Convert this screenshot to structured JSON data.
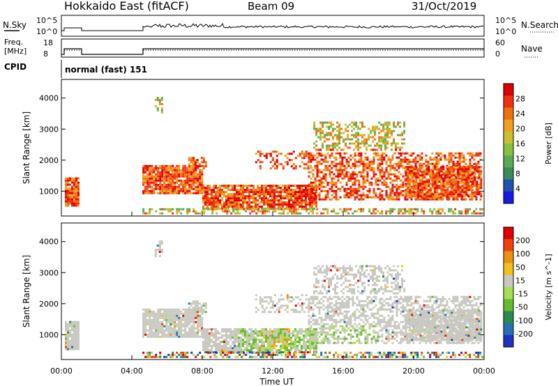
{
  "header": {
    "radar": "Hokkaido East (fitACF)",
    "beam": "Beam 09",
    "date": "31/Oct/2019"
  },
  "panels": {
    "nsky": {
      "label": "N.Sky",
      "ticks": [
        "10^5",
        "10^0"
      ],
      "right_label": "N.Search",
      "right_ticks": [
        "10^5",
        "10^0"
      ]
    },
    "freq": {
      "label_line1": "Freq.",
      "label_line2": "[MHz]",
      "ticks": [
        "18",
        "8"
      ],
      "right_label": "Nave",
      "right_ticks": [
        "60",
        "0"
      ]
    },
    "cpid": {
      "label": "CPID",
      "text": "normal (fast) 151"
    }
  },
  "chart_data": [
    {
      "type": "heatmap",
      "name": "power",
      "ylabel": "Slant Range [km]",
      "xlabel": "",
      "x_ticks": [
        "00:00",
        "04:00",
        "08:00",
        "12:00",
        "16:00",
        "20:00",
        "00:00"
      ],
      "y_ticks": [
        1000,
        2000,
        3000,
        4000
      ],
      "ylim": [
        200,
        4600
      ],
      "xlim_hours": [
        0,
        24
      ],
      "colorbar": {
        "label": "Power [dB]",
        "ticks": [
          "4",
          "8",
          "12",
          "16",
          "20",
          "24",
          "28"
        ],
        "colors": [
          "#1a1ae6",
          "#2050b0",
          "#3a8a5a",
          "#5aaa55",
          "#88c040",
          "#c8c030",
          "#f0a020",
          "#f07010",
          "#f03010",
          "#e00000"
        ]
      },
      "data_gaps_hours": [
        [
          1.0,
          4.6
        ]
      ]
    },
    {
      "type": "heatmap",
      "name": "velocity",
      "ylabel": "Slant Range [km]",
      "xlabel": "Time UT",
      "x_ticks": [
        "00:00",
        "04:00",
        "08:00",
        "12:00",
        "16:00",
        "20:00",
        "00:00"
      ],
      "y_ticks": [
        1000,
        2000,
        3000,
        4000
      ],
      "ylim": [
        200,
        4600
      ],
      "xlim_hours": [
        0,
        24
      ],
      "colorbar": {
        "label": "Velocity [m s^-1]",
        "ticks": [
          "200",
          "100",
          "50",
          "15",
          "-15",
          "-50",
          "-100",
          "-200"
        ],
        "colors": [
          "#2030c0",
          "#2870b0",
          "#2a8a50",
          "#66bb33",
          "#aadd55",
          "#c8c8c0",
          "#f0c020",
          "#f09010",
          "#f04010",
          "#e00000"
        ]
      },
      "data_gaps_hours": [
        [
          1.0,
          4.6
        ]
      ]
    }
  ]
}
